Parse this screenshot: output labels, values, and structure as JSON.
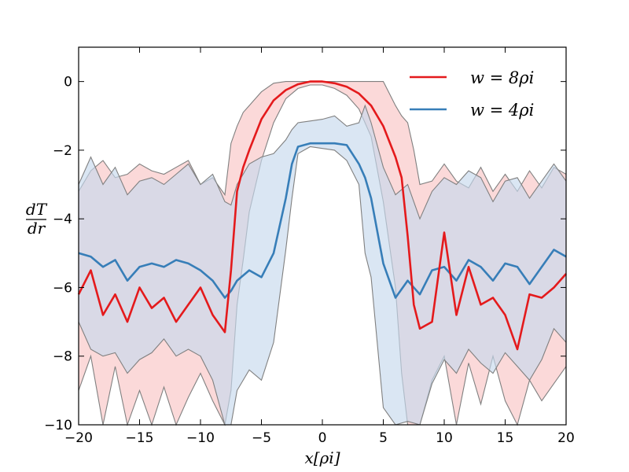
{
  "chart_data": {
    "type": "line",
    "title": "",
    "xlabel": "x[ρi]",
    "ylabel_num": "dT",
    "ylabel_den": "dr",
    "xlim": [
      -20,
      20
    ],
    "ylim": [
      -10,
      1
    ],
    "xticks": [
      -20,
      -15,
      -10,
      -5,
      0,
      5,
      10,
      15,
      20
    ],
    "yticks": [
      -10,
      -8,
      -6,
      -4,
      -2,
      0
    ],
    "xtick_labels": [
      "−20",
      "−15",
      "−10",
      "−5",
      "0",
      "5",
      "10",
      "15",
      "20"
    ],
    "ytick_labels": [
      "−10",
      "−8",
      "−6",
      "−4",
      "−2",
      "0"
    ],
    "grid": false,
    "legend_position": "top-right",
    "series": [
      {
        "name": "w = 8ρi",
        "color": "#e41a1c",
        "fill_color": "#f9c4c4",
        "x": [
          -20,
          -19,
          -18,
          -17,
          -16,
          -15,
          -14,
          -13,
          -12,
          -11,
          -10,
          -9,
          -8,
          -7.5,
          -7,
          -6.5,
          -6,
          -5,
          -4,
          -3,
          -2,
          -1,
          0,
          1,
          2,
          3,
          4,
          5,
          6,
          6.5,
          7,
          7.5,
          8,
          9,
          10,
          11,
          12,
          13,
          14,
          15,
          16,
          17,
          18,
          19,
          20
        ],
        "mean": [
          -6.2,
          -5.5,
          -6.8,
          -6.2,
          -7.0,
          -6.0,
          -6.6,
          -6.3,
          -7.0,
          -6.5,
          -6.0,
          -6.8,
          -7.3,
          -5.5,
          -3.2,
          -2.5,
          -2.0,
          -1.1,
          -0.55,
          -0.25,
          -0.08,
          0.0,
          0.0,
          -0.05,
          -0.15,
          -0.35,
          -0.7,
          -1.3,
          -2.2,
          -2.8,
          -4.5,
          -6.5,
          -7.2,
          -7.0,
          -4.4,
          -6.8,
          -5.4,
          -6.5,
          -6.3,
          -6.8,
          -7.8,
          -6.2,
          -6.3,
          -6.0,
          -5.6
        ],
        "upper": [
          -3.2,
          -2.6,
          -2.3,
          -2.8,
          -2.7,
          -2.4,
          -2.6,
          -2.7,
          -2.5,
          -2.3,
          -3.0,
          -2.8,
          -3.3,
          -1.8,
          -1.3,
          -0.9,
          -0.7,
          -0.3,
          -0.05,
          0.0,
          0.0,
          0.0,
          0.0,
          0.0,
          0.0,
          0.0,
          0.0,
          0.0,
          -0.7,
          -1.0,
          -1.2,
          -2.0,
          -3.0,
          -2.9,
          -2.4,
          -2.9,
          -3.1,
          -2.5,
          -3.2,
          -2.7,
          -3.2,
          -2.6,
          -3.1,
          -2.5,
          -2.7
        ],
        "lower": [
          -9.0,
          -8.0,
          -10.0,
          -8.3,
          -10.0,
          -9.0,
          -10.0,
          -8.9,
          -10.0,
          -9.2,
          -8.5,
          -9.3,
          -10.0,
          -9.0,
          -6.5,
          -5.2,
          -3.8,
          -2.3,
          -1.2,
          -0.5,
          -0.2,
          -0.1,
          -0.1,
          -0.2,
          -0.4,
          -0.8,
          -1.6,
          -3.5,
          -6.0,
          -8.5,
          -10.0,
          -10.0,
          -10.0,
          -8.7,
          -8.0,
          -10.0,
          -8.2,
          -9.4,
          -8.0,
          -9.3,
          -10.0,
          -8.7,
          -9.3,
          -8.8,
          -8.3
        ]
      },
      {
        "name": "w = 4ρi",
        "color": "#377eb8",
        "fill_color": "#c6d9ec",
        "x": [
          -20,
          -19,
          -18,
          -17,
          -16,
          -15,
          -14,
          -13,
          -12,
          -11,
          -10,
          -9,
          -8,
          -7.5,
          -7,
          -6,
          -5,
          -4,
          -3,
          -2.5,
          -2,
          -1,
          0,
          1,
          2,
          3,
          3.5,
          4,
          5,
          6,
          7,
          8,
          9,
          10,
          11,
          12,
          13,
          14,
          15,
          16,
          17,
          18,
          19,
          20
        ],
        "mean": [
          -5.0,
          -5.1,
          -5.4,
          -5.2,
          -5.8,
          -5.4,
          -5.3,
          -5.4,
          -5.2,
          -5.3,
          -5.5,
          -5.8,
          -6.3,
          -6.1,
          -5.8,
          -5.5,
          -5.7,
          -5.0,
          -3.4,
          -2.4,
          -1.9,
          -1.8,
          -1.8,
          -1.8,
          -1.85,
          -2.4,
          -2.8,
          -3.4,
          -5.3,
          -6.3,
          -5.8,
          -6.2,
          -5.5,
          -5.4,
          -5.8,
          -5.2,
          -5.4,
          -5.8,
          -5.3,
          -5.4,
          -5.9,
          -5.4,
          -4.9,
          -5.1
        ],
        "upper": [
          -3.0,
          -2.2,
          -3.0,
          -2.5,
          -3.3,
          -2.9,
          -2.8,
          -3.0,
          -2.7,
          -2.4,
          -3.0,
          -2.7,
          -3.5,
          -3.6,
          -3.0,
          -2.4,
          -2.2,
          -2.1,
          -1.7,
          -1.4,
          -1.2,
          -1.15,
          -1.1,
          -1.0,
          -1.3,
          -1.2,
          -0.7,
          -1.2,
          -2.5,
          -3.3,
          -3.0,
          -4.0,
          -3.2,
          -2.8,
          -3.0,
          -2.6,
          -2.8,
          -3.5,
          -2.9,
          -2.8,
          -3.4,
          -2.9,
          -2.4,
          -2.9
        ],
        "lower": [
          -7.0,
          -7.8,
          -8.0,
          -7.9,
          -8.5,
          -8.1,
          -7.9,
          -7.5,
          -8.0,
          -7.8,
          -8.0,
          -8.7,
          -10.0,
          -10.0,
          -9.0,
          -8.4,
          -8.7,
          -7.6,
          -4.9,
          -3.4,
          -2.1,
          -1.9,
          -1.95,
          -2.0,
          -2.3,
          -3.0,
          -5.0,
          -5.7,
          -9.5,
          -10.0,
          -9.9,
          -10.0,
          -8.8,
          -8.1,
          -8.5,
          -7.8,
          -8.2,
          -8.5,
          -7.9,
          -8.3,
          -8.7,
          -8.1,
          -7.2,
          -7.6
        ]
      }
    ]
  }
}
